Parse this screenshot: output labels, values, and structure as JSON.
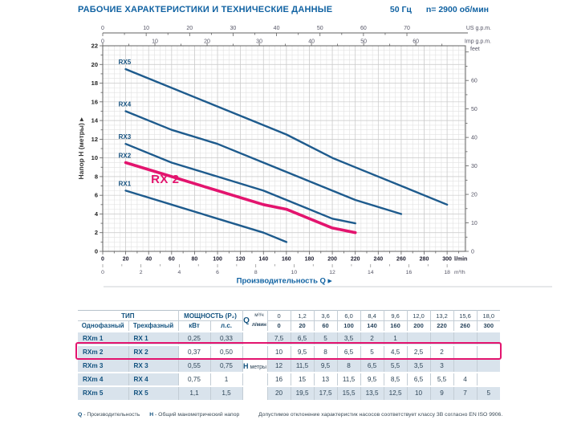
{
  "page": {
    "title": "РАБОЧИЕ ХАРАКТЕРИСТИКИ И ТЕХНИЧЕСКИЕ ДАННЫЕ",
    "frequency": "50 Гц",
    "speed": "n= 2900 об/мин"
  },
  "colors": {
    "navy": "#1062a2",
    "curve_blue": "#1e5b8d",
    "pink": "#e3146e",
    "row_tint": "#d9e3ec",
    "grid_minor": "#e1e1e1",
    "grid_major": "#c9c9c9",
    "axis": "#606060"
  },
  "chart_data": {
    "type": "line",
    "title": "",
    "xlabel": "Производительность Q",
    "ylabel": "Напор H (метры)",
    "xlim_lmin": [
      0,
      316
    ],
    "ylim_m": [
      0,
      22
    ],
    "grid": "minor+major",
    "axes": {
      "y_left": {
        "label": "Напор H (метры)",
        "ticks": [
          0,
          2,
          4,
          6,
          8,
          10,
          12,
          14,
          16,
          18,
          20,
          22
        ]
      },
      "y_right": {
        "label": "feet",
        "ticks": [
          0,
          10,
          20,
          30,
          40,
          50,
          60
        ]
      },
      "x_lmin": {
        "label": "l/min",
        "ticks": [
          0,
          20,
          40,
          60,
          80,
          100,
          120,
          140,
          160,
          180,
          200,
          220,
          240,
          260,
          280,
          300
        ]
      },
      "x_m3h": {
        "label": "m³/h",
        "ticks": [
          0,
          2,
          4,
          6,
          8,
          10,
          12,
          14,
          16,
          18
        ]
      },
      "x_usgpm": {
        "label": "US g.p.m.",
        "ticks": [
          0,
          10,
          20,
          30,
          40,
          50,
          60,
          70
        ]
      },
      "x_impgpm": {
        "label": "Imp g.p.m.",
        "ticks": [
          0,
          10,
          20,
          30,
          40,
          50,
          60
        ]
      }
    },
    "series": [
      {
        "name": "RX5",
        "points_lmin_m": [
          [
            20,
            19.5
          ],
          [
            60,
            17.5
          ],
          [
            100,
            15.5
          ],
          [
            140,
            13.5
          ],
          [
            160,
            12.5
          ],
          [
            200,
            10
          ],
          [
            220,
            9
          ],
          [
            260,
            7
          ],
          [
            300,
            5
          ]
        ]
      },
      {
        "name": "RX4",
        "points_lmin_m": [
          [
            20,
            15
          ],
          [
            60,
            13
          ],
          [
            100,
            11.5
          ],
          [
            140,
            9.5
          ],
          [
            160,
            8.5
          ],
          [
            200,
            6.5
          ],
          [
            220,
            5.5
          ],
          [
            260,
            4
          ]
        ]
      },
      {
        "name": "RX3",
        "points_lmin_m": [
          [
            20,
            11.5
          ],
          [
            60,
            9.5
          ],
          [
            100,
            8
          ],
          [
            140,
            6.5
          ],
          [
            160,
            5.5
          ],
          [
            200,
            3.5
          ],
          [
            220,
            3
          ]
        ]
      },
      {
        "name": "RX1",
        "points_lmin_m": [
          [
            20,
            6.5
          ],
          [
            60,
            5
          ],
          [
            100,
            3.5
          ],
          [
            140,
            2
          ],
          [
            160,
            1
          ]
        ]
      },
      {
        "name": "RX2",
        "highlight": true,
        "points_lmin_m": [
          [
            20,
            9.5
          ],
          [
            60,
            8
          ],
          [
            100,
            6.5
          ],
          [
            140,
            5
          ],
          [
            160,
            4.5
          ],
          [
            200,
            2.5
          ],
          [
            220,
            2
          ]
        ]
      }
    ],
    "annotation": {
      "text": "RX 2",
      "q_lmin": 42,
      "h_m": 7.3
    }
  },
  "table": {
    "header": {
      "type_group": "ТИП",
      "col_single": "Однофазный",
      "col_three": "Трехфазный",
      "power_group": "МОЩНОСТЬ (P₂)",
      "col_kw": "кВт",
      "col_hp": "л.с.",
      "q_label": "Q",
      "q_unit_top": "м³/ч",
      "q_unit_bottom": "л/мин",
      "q_m3h": [
        "0",
        "1,2",
        "3,6",
        "6,0",
        "8,4",
        "9,6",
        "12,0",
        "13,2",
        "15,6",
        "18,0"
      ],
      "q_lmin": [
        "0",
        "20",
        "60",
        "100",
        "140",
        "160",
        "200",
        "220",
        "260",
        "300"
      ]
    },
    "h_label": "H",
    "h_unit": "метры",
    "rows": [
      {
        "single": "RXm 1",
        "three": "RX 1",
        "kw": "0,25",
        "hp": "0,33",
        "h": [
          "7,5",
          "6,5",
          "5",
          "3,5",
          "2",
          "1",
          "",
          "",
          "",
          ""
        ]
      },
      {
        "single": "RXm 2",
        "three": "RX 2",
        "kw": "0,37",
        "hp": "0,50",
        "h": [
          "10",
          "9,5",
          "8",
          "6,5",
          "5",
          "4,5",
          "2,5",
          "2",
          "",
          ""
        ],
        "highlight": true
      },
      {
        "single": "RXm 3",
        "three": "RX 3",
        "kw": "0,55",
        "hp": "0,75",
        "h": [
          "12",
          "11,5",
          "9,5",
          "8",
          "6,5",
          "5,5",
          "3,5",
          "3",
          "",
          ""
        ]
      },
      {
        "single": "RXm 4",
        "three": "RX 4",
        "kw": "0,75",
        "hp": "1",
        "h": [
          "16",
          "15",
          "13",
          "11,5",
          "9,5",
          "8,5",
          "6,5",
          "5,5",
          "4",
          ""
        ]
      },
      {
        "single": "RXm 5",
        "three": "RX 5",
        "kw": "1,1",
        "hp": "1,5",
        "h": [
          "20",
          "19,5",
          "17,5",
          "15,5",
          "13,5",
          "12,5",
          "10",
          "9",
          "7",
          "5"
        ]
      }
    ],
    "footnotes": {
      "q_term": "Q",
      "q_desc": "- Производительность",
      "h_term": "H",
      "h_desc": "- Общий манометрический напор",
      "right": "Допустимое отклонение характеристик насосов соответствует классу 3B согласно EN ISO 9906."
    }
  }
}
